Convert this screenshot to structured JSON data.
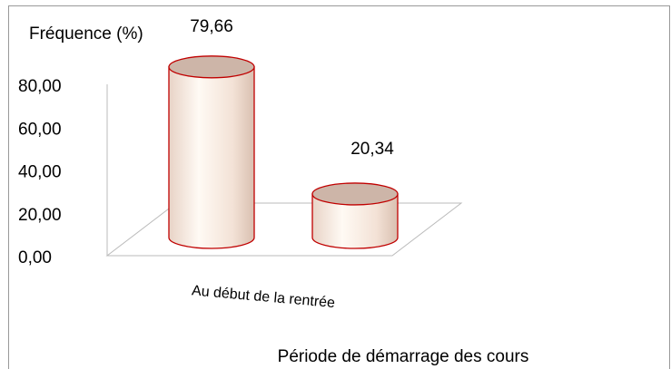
{
  "chart_data": {
    "type": "cylinder",
    "y_label": "Fréquence (%)",
    "x_label": "Période de démarrage des cours",
    "categories": [
      "Au début de la rentrée",
      null
    ],
    "values": [
      79.66,
      20.34
    ],
    "value_labels": [
      "79,66",
      "20,34"
    ],
    "color": "#c00000",
    "ylim": [
      0,
      80
    ],
    "yticks": [
      {
        "value": 0,
        "label": "0,00"
      },
      {
        "value": 20,
        "label": "20,00"
      },
      {
        "value": 40,
        "label": "40,00"
      },
      {
        "value": 60,
        "label": "60,00"
      },
      {
        "value": 80,
        "label": "80,00"
      }
    ]
  }
}
